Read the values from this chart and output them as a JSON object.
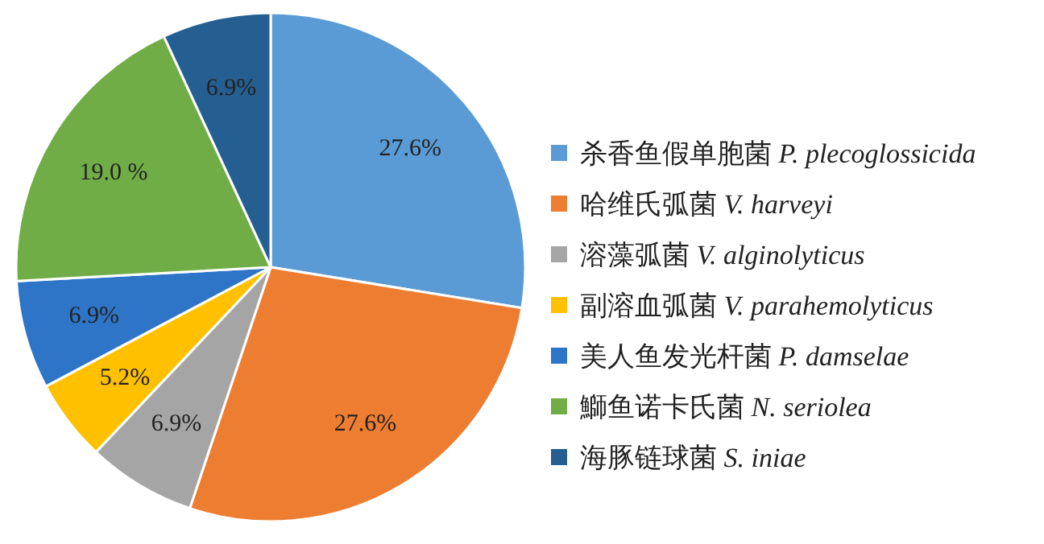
{
  "chart_data": {
    "type": "pie",
    "categories": [
      "杀香鱼假单胞菌 P. plecoglossicida",
      "哈维氏弧菌 V. harveyi",
      "溶藻弧菌 V. alginolyticus",
      "副溶血弧菌 V. parahemolyticus",
      "美人鱼发光杆菌 P. damselae",
      "鰤鱼诺卡氏菌 N. seriolea",
      "海豚链球菌 S. iniae"
    ],
    "values": [
      27.6,
      27.6,
      6.9,
      5.2,
      6.9,
      19.0,
      6.9
    ],
    "value_labels": [
      "27.6%",
      "27.6%",
      "6.9%",
      "5.2%",
      "6.9%",
      "19.0 %",
      "6.9%"
    ],
    "colors": [
      "#5b9bd5",
      "#ed7d31",
      "#a5a5a5",
      "#ffc000",
      "#2e75c8",
      "#70ad47",
      "#255e91"
    ],
    "legend": "right"
  }
}
